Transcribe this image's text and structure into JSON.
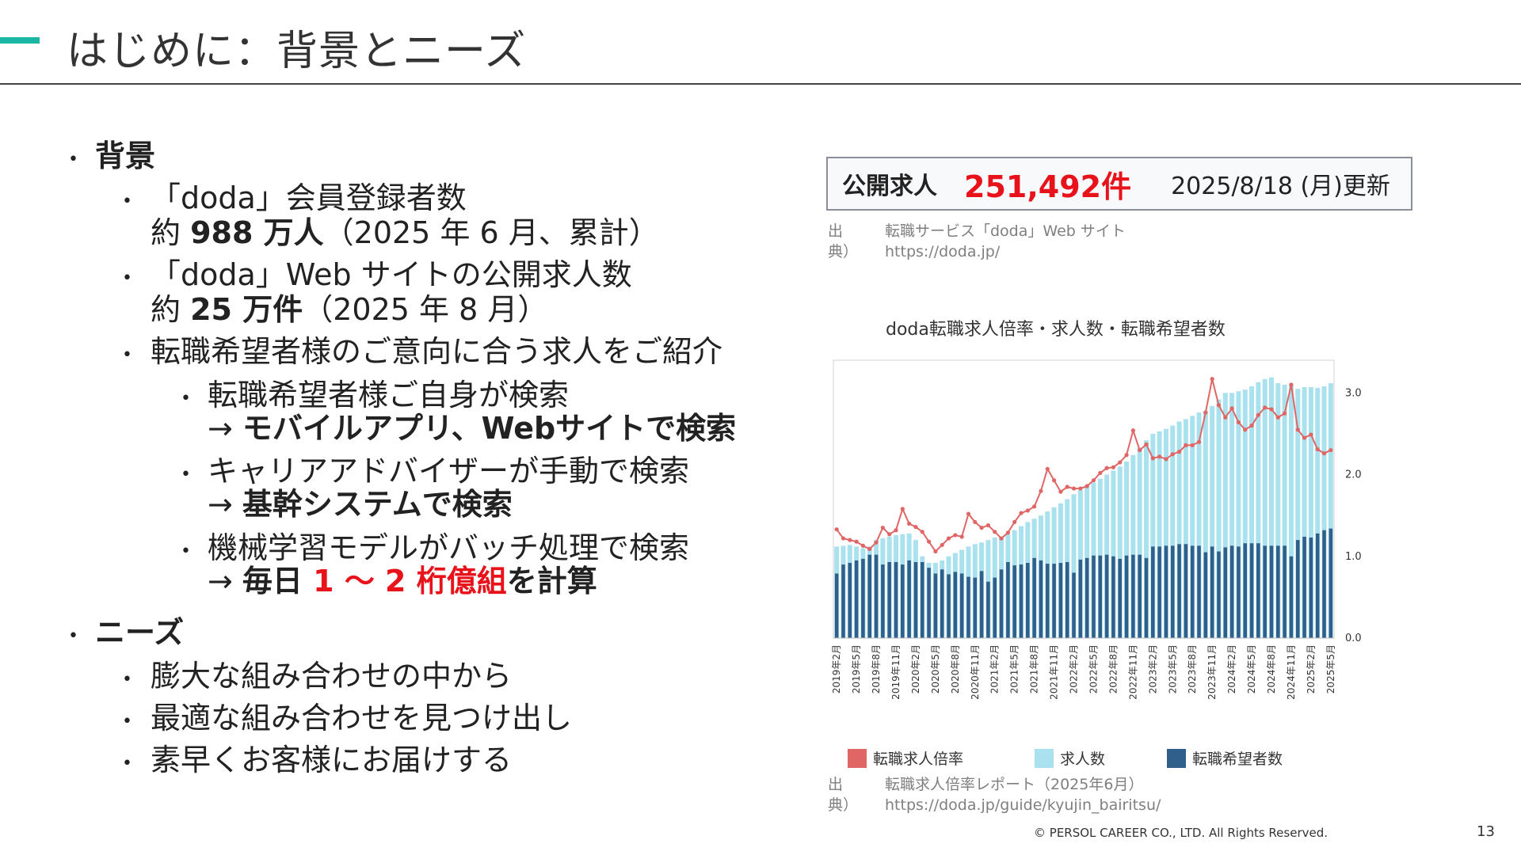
{
  "page": {
    "title": "はじめに：背景とニーズ",
    "number": "13",
    "copyright": "© PERSOL CAREER CO., LTD. All Rights Reserved.",
    "accent_color": "#1bb6a4",
    "highlight_color": "#e8131a"
  },
  "bullets": {
    "background_heading": "背景",
    "members_line1": "「doda」会員登録者数",
    "members_prefix": "約 ",
    "members_value": "988 万人",
    "members_note": "（2025 年 6 月、累計）",
    "jobs_line1": "「doda」Web サイトの公開求人数",
    "jobs_prefix": "約 ",
    "jobs_value": "25 万件",
    "jobs_note": "（2025 年 8 月）",
    "intro_line": "転職希望者様のご意向に合う求人をご紹介",
    "self_search": "転職希望者様ご自身が検索",
    "self_search_arrow": "→ ",
    "self_search_result": "モバイルアプリ、Webサイトで検索",
    "advisor_search": "キャリアアドバイザーが手動で検索",
    "advisor_arrow": "→ ",
    "advisor_result": "基幹システムで検索",
    "ml_search": "機械学習モデルがバッチ処理で検索",
    "ml_arrow": "→ ",
    "ml_result_pre": "毎日 ",
    "ml_result_red": "1 ～ 2 桁億組",
    "ml_result_post": "を計算",
    "needs_heading": "ニーズ",
    "need1": "膨大な組み合わせの中から",
    "need2": "最適な組み合わせを見つけ出し",
    "need3": "素早くお客様にお届けする"
  },
  "banner": {
    "label": "公開求人",
    "count": "251,492件",
    "updated": "2025/8/18 (月)更新"
  },
  "source1": {
    "key": "出典）",
    "name": "転職サービス「doda」Web サイト",
    "url": "https://doda.jp/"
  },
  "source2": {
    "key": "出典）",
    "name": "転職求人倍率レポート（2025年6月）",
    "url": "https://doda.jp/guide/kyujin_bairitsu/"
  },
  "chart_data": {
    "type": "bar",
    "title": "doda転職求人倍率・求人数・転職希望者数",
    "xlabel": "",
    "ylabel": "",
    "ylim": [
      0,
      3.4
    ],
    "yticks": [
      "0.0",
      "1.0",
      "2.0",
      "3.0"
    ],
    "y_axis_side": "right",
    "grid": false,
    "legend_position": "bottom",
    "x_tick_labels": [
      "2019年2月",
      "2019年5月",
      "2019年8月",
      "2019年11月",
      "2020年2月",
      "2020年5月",
      "2020年8月",
      "2020年11月",
      "2021年2月",
      "2021年5月",
      "2021年8月",
      "2021年11月",
      "2022年2月",
      "2022年5月",
      "2022年8月",
      "2022年11月",
      "2023年2月",
      "2023年5月",
      "2023年8月",
      "2023年11月",
      "2024年2月",
      "2024年5月",
      "2024年8月",
      "2024年11月",
      "2025年2月",
      "2025年5月"
    ],
    "series": [
      {
        "name": "転職求人倍率",
        "kind": "line",
        "color": "#e06666",
        "values": [
          1.33,
          1.22,
          1.2,
          1.18,
          1.13,
          1.09,
          1.17,
          1.35,
          1.27,
          1.32,
          1.58,
          1.4,
          1.36,
          1.3,
          1.18,
          1.06,
          1.14,
          1.22,
          1.26,
          1.24,
          1.52,
          1.42,
          1.35,
          1.38,
          1.3,
          1.22,
          1.29,
          1.42,
          1.53,
          1.56,
          1.61,
          1.8,
          2.07,
          1.93,
          1.79,
          1.85,
          1.83,
          1.83,
          1.86,
          1.93,
          2.02,
          2.08,
          2.09,
          2.15,
          2.24,
          2.54,
          2.3,
          2.37,
          2.2,
          2.22,
          2.19,
          2.25,
          2.28,
          2.36,
          2.36,
          2.4,
          2.76,
          3.17,
          2.85,
          2.7,
          2.81,
          2.64,
          2.55,
          2.6,
          2.73,
          2.82,
          2.8,
          2.7,
          2.75,
          3.1,
          2.55,
          2.45,
          2.49,
          2.31,
          2.26,
          2.3
        ]
      },
      {
        "name": "求人数",
        "kind": "bar",
        "color": "#a9e2ee",
        "values": [
          1.12,
          1.13,
          1.14,
          1.12,
          1.1,
          1.12,
          1.2,
          1.22,
          1.24,
          1.26,
          1.27,
          1.28,
          1.2,
          1.0,
          0.92,
          0.92,
          0.95,
          1.0,
          1.04,
          1.08,
          1.12,
          1.15,
          1.17,
          1.2,
          1.23,
          1.24,
          1.27,
          1.32,
          1.37,
          1.42,
          1.46,
          1.5,
          1.55,
          1.6,
          1.65,
          1.7,
          1.76,
          1.81,
          1.86,
          1.9,
          1.95,
          2.0,
          2.05,
          2.1,
          2.16,
          2.24,
          2.33,
          2.42,
          2.5,
          2.53,
          2.56,
          2.6,
          2.65,
          2.68,
          2.72,
          2.76,
          2.78,
          2.84,
          2.92,
          3.0,
          3.0,
          3.02,
          3.04,
          3.08,
          3.13,
          3.17,
          3.19,
          3.12,
          3.1,
          3.1,
          3.05,
          3.07,
          3.07,
          3.06,
          3.08,
          3.12
        ]
      },
      {
        "name": "転職希望者数",
        "kind": "bar",
        "color": "#2f5f8a",
        "values": [
          0.79,
          0.9,
          0.92,
          0.95,
          0.97,
          1.02,
          1.02,
          0.9,
          0.93,
          0.93,
          0.9,
          0.95,
          0.93,
          0.93,
          0.86,
          0.79,
          0.84,
          0.78,
          0.81,
          0.79,
          0.75,
          0.74,
          0.82,
          0.69,
          0.74,
          0.84,
          0.93,
          0.89,
          0.9,
          0.92,
          0.98,
          0.95,
          0.91,
          0.91,
          0.92,
          0.93,
          0.8,
          0.96,
          0.98,
          1.01,
          1.01,
          1.02,
          1.0,
          0.97,
          1.01,
          1.02,
          1.02,
          0.98,
          1.12,
          1.12,
          1.13,
          1.13,
          1.15,
          1.15,
          1.13,
          1.13,
          1.05,
          1.12,
          1.06,
          1.11,
          1.13,
          1.12,
          1.16,
          1.16,
          1.16,
          1.13,
          1.13,
          1.13,
          1.13,
          1.0,
          1.2,
          1.24,
          1.23,
          1.28,
          1.32,
          1.34
        ]
      }
    ]
  }
}
